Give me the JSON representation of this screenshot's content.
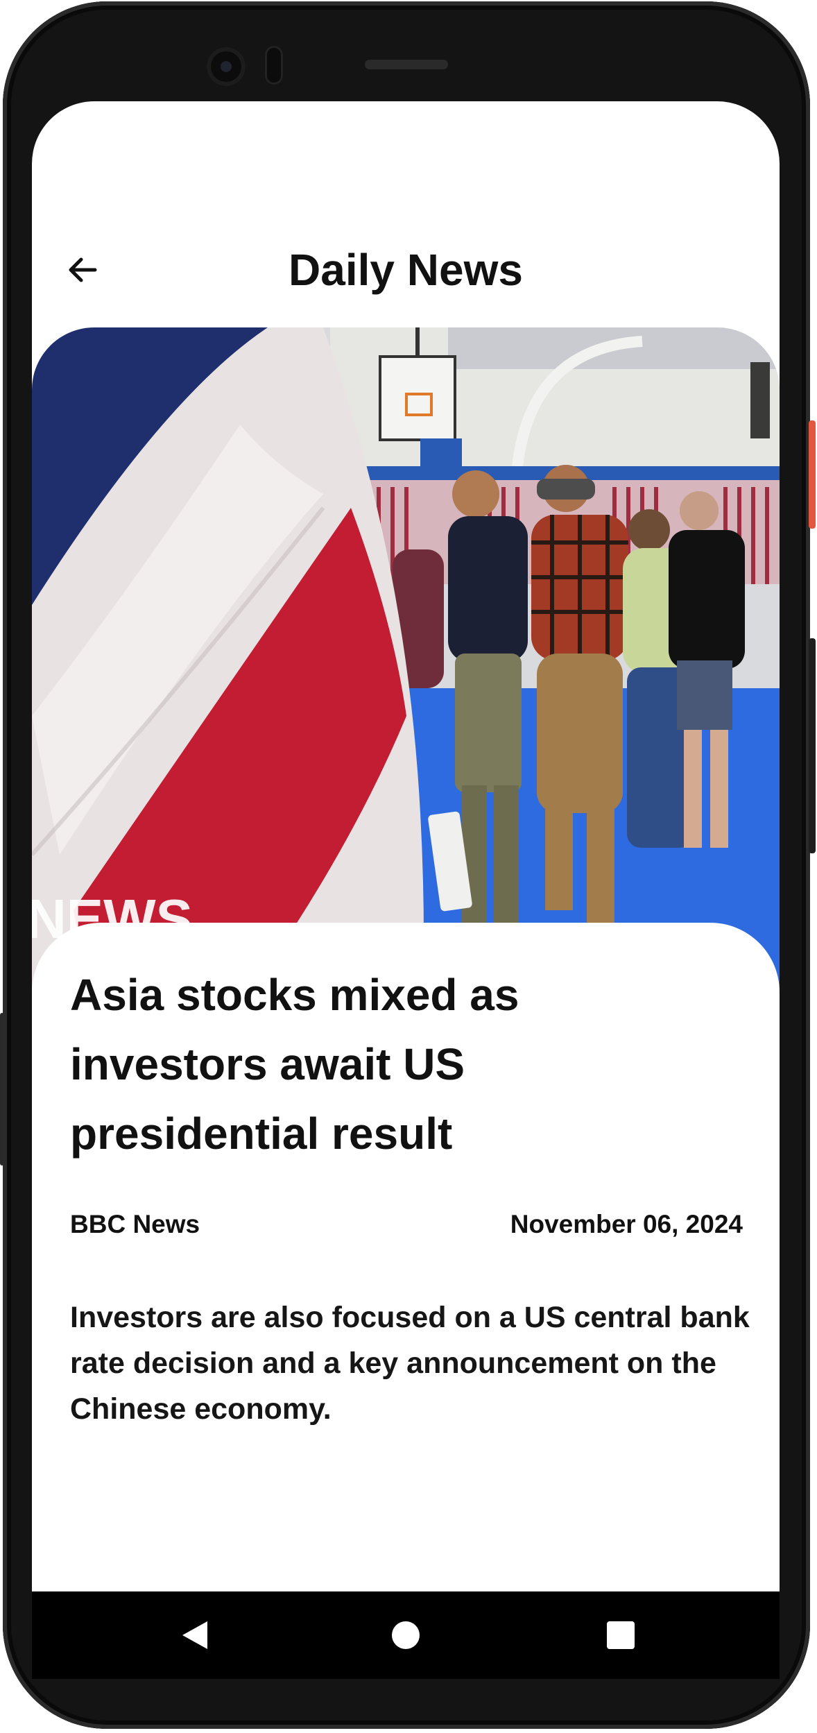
{
  "app_bar": {
    "title": "Daily News",
    "back_icon": "arrow-left-icon"
  },
  "hero_image": {
    "description_icon": "news-photo",
    "watermark": "NEWS"
  },
  "article": {
    "headline": "Asia stocks mixed as investors await US presidential result",
    "source": "BBC News",
    "date": "November 06, 2024",
    "summary": "Investors are also focused on a US central bank rate decision and a key announcement on the Chinese economy."
  },
  "system_nav": {
    "back_icon": "nav-back-triangle-icon",
    "home_icon": "nav-home-circle-icon",
    "recents_icon": "nav-recents-square-icon"
  },
  "colors": {
    "accent_power_button": "#e3573d",
    "text_primary": "#111111",
    "background": "#ffffff"
  }
}
